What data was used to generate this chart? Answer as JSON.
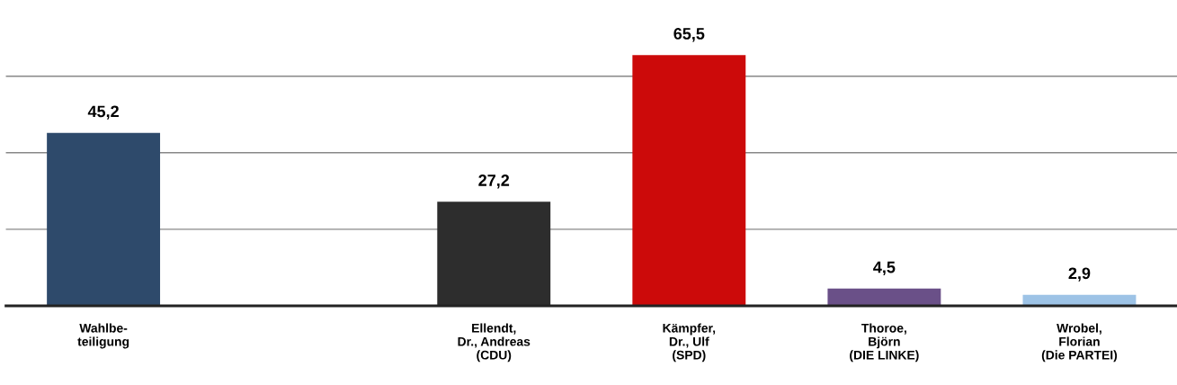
{
  "chart_data": {
    "type": "bar",
    "categories": [
      "Wahlbe-\nteiligung",
      null,
      "Ellendt,\nDr., Andreas\n(CDU)",
      "Kämpfer,\nDr., Ulf\n(SPD)",
      "Thoroe,\nBjörn\n(DIE LINKE)",
      "Wrobel,\nFlorian\n(Die PARTEI)"
    ],
    "values": [
      45.2,
      null,
      27.2,
      65.5,
      4.5,
      2.9
    ],
    "value_labels": [
      "45,2",
      null,
      "27,2",
      "65,5",
      "4,5",
      "2,9"
    ],
    "colors": [
      "#2e4a6b",
      null,
      "#2d2d2d",
      "#cc0a0a",
      "#6a5088",
      "#9dc3e6"
    ],
    "yticks": [
      {
        "value": 0,
        "label": null
      },
      {
        "value": 20,
        "label": null
      },
      {
        "value": 40,
        "label": null
      },
      {
        "value": 60,
        "label": null
      }
    ],
    "grid": "y",
    "tick_labels": "x"
  }
}
